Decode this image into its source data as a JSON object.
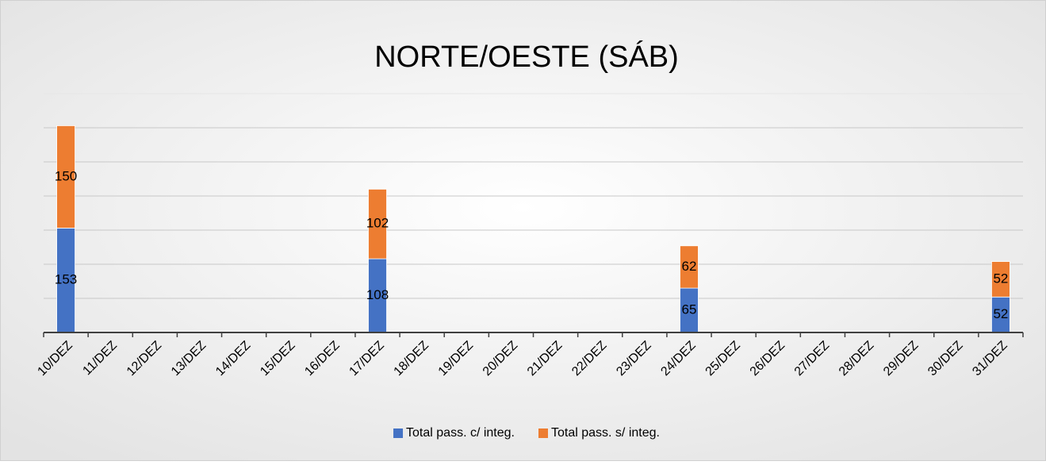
{
  "chart_data": {
    "type": "stacked_bar",
    "title": "NORTE/OESTE (SÁB)",
    "categories": [
      "10/DEZ",
      "11/DEZ",
      "12/DEZ",
      "13/DEZ",
      "14/DEZ",
      "15/DEZ",
      "16/DEZ",
      "17/DEZ",
      "18/DEZ",
      "19/DEZ",
      "20/DEZ",
      "21/DEZ",
      "22/DEZ",
      "23/DEZ",
      "24/DEZ",
      "25/DEZ",
      "26/DEZ",
      "27/DEZ",
      "28/DEZ",
      "29/DEZ",
      "30/DEZ",
      "31/DEZ"
    ],
    "series": [
      {
        "name": "Total pass. c/ integ.",
        "color": "#4472c4",
        "values": [
          153,
          null,
          null,
          null,
          null,
          null,
          null,
          108,
          null,
          null,
          null,
          null,
          null,
          null,
          65,
          null,
          null,
          null,
          null,
          null,
          null,
          52
        ]
      },
      {
        "name": "Total pass. s/ integ.",
        "color": "#ed7d31",
        "values": [
          150,
          null,
          null,
          null,
          null,
          null,
          null,
          102,
          null,
          null,
          null,
          null,
          null,
          null,
          62,
          null,
          null,
          null,
          null,
          null,
          null,
          52
        ]
      }
    ],
    "ylim": [
      0,
      350
    ],
    "yticks": [
      0,
      50,
      100,
      150,
      200,
      250,
      300,
      350
    ],
    "grid": true,
    "legend": "bottom"
  }
}
